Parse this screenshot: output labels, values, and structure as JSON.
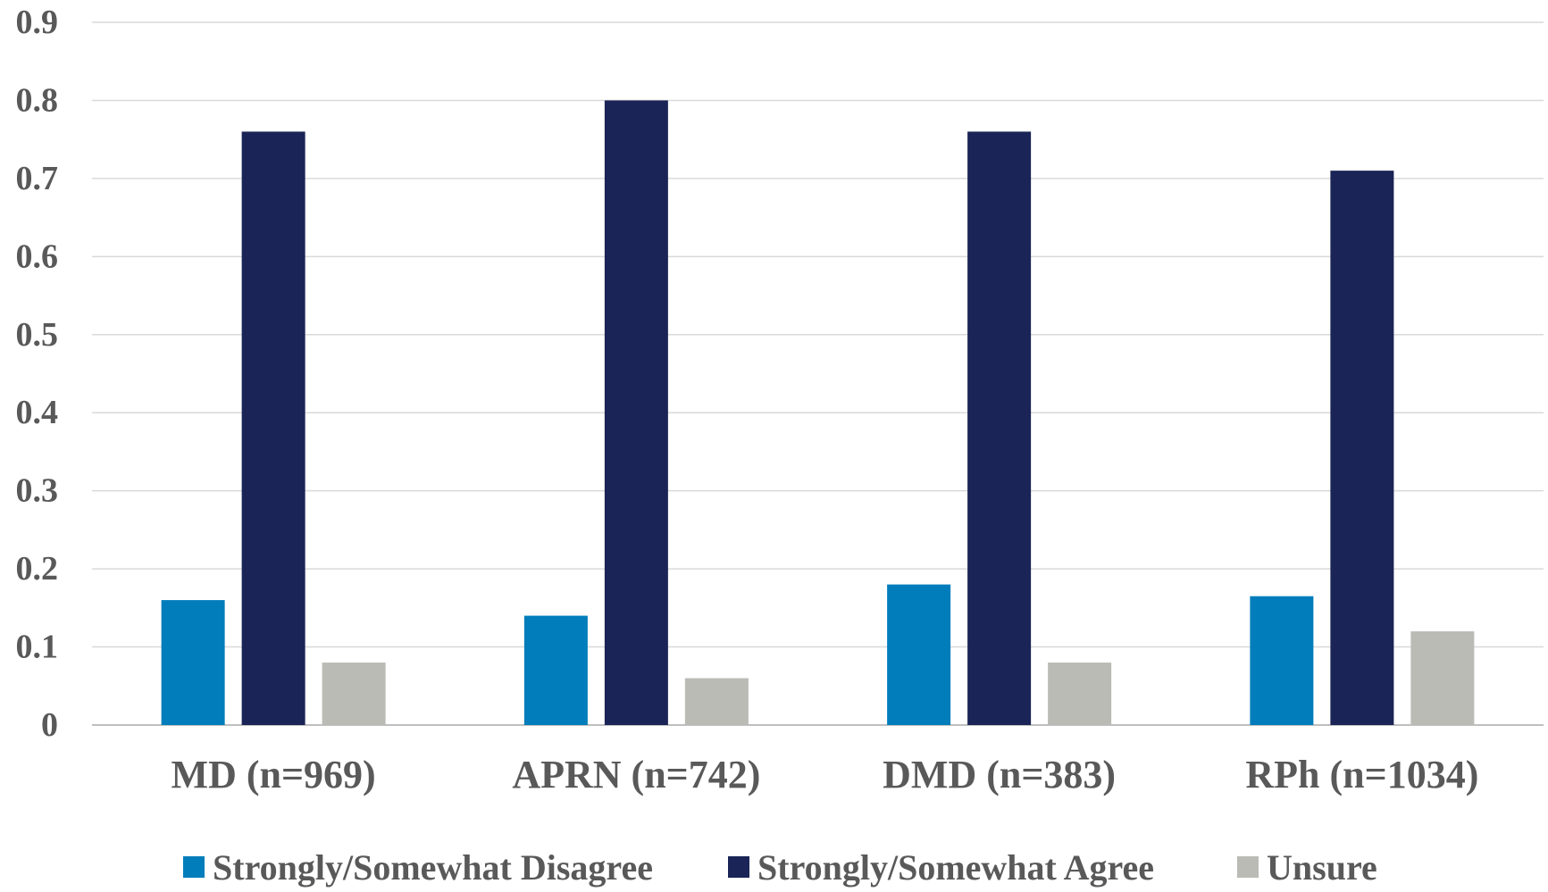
{
  "chart_data": {
    "type": "bar",
    "categories": [
      "MD (n=969)",
      "APRN (n=742)",
      "DMD (n=383)",
      "RPh (n=1034)"
    ],
    "series": [
      {
        "name": "Strongly/Somewhat Disagree",
        "color": "#007DBA",
        "values": [
          0.16,
          0.14,
          0.18,
          0.165
        ]
      },
      {
        "name": "Strongly/Somewhat Agree",
        "color": "#1A2456",
        "values": [
          0.76,
          0.8,
          0.76,
          0.71
        ]
      },
      {
        "name": "Unsure",
        "color": "#BBBBB6",
        "values": [
          0.08,
          0.06,
          0.08,
          0.12
        ]
      }
    ],
    "yticks": [
      "0",
      "0.1",
      "0.2",
      "0.3",
      "0.4",
      "0.5",
      "0.6",
      "0.7",
      "0.8",
      "0.9"
    ],
    "ylim": [
      0,
      0.9
    ],
    "grid": true,
    "legend_position": "bottom",
    "title": "",
    "xlabel": "",
    "ylabel": ""
  }
}
